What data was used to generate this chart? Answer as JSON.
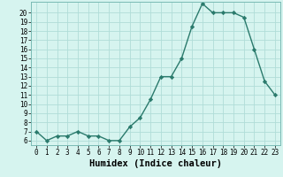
{
  "x": [
    0,
    1,
    2,
    3,
    4,
    5,
    6,
    7,
    8,
    9,
    10,
    11,
    12,
    13,
    14,
    15,
    16,
    17,
    18,
    19,
    20,
    21,
    22,
    23
  ],
  "y": [
    7,
    6,
    6.5,
    6.5,
    7,
    6.5,
    6.5,
    6,
    6,
    7.5,
    8.5,
    10.5,
    13,
    13,
    15,
    18.5,
    21,
    20,
    20,
    20,
    19.5,
    16,
    12.5,
    11
  ],
  "line_color": "#2a7a6c",
  "marker": "D",
  "marker_size": 2.2,
  "line_width": 1.0,
  "xlabel": "Humidex (Indice chaleur)",
  "xlim": [
    -0.5,
    23.5
  ],
  "ylim": [
    5.5,
    21.2
  ],
  "yticks": [
    6,
    7,
    8,
    9,
    10,
    11,
    12,
    13,
    14,
    15,
    16,
    17,
    18,
    19,
    20
  ],
  "xtick_labels": [
    "0",
    "1",
    "2",
    "3",
    "4",
    "5",
    "6",
    "7",
    "8",
    "9",
    "10",
    "11",
    "12",
    "13",
    "14",
    "15",
    "16",
    "17",
    "18",
    "19",
    "20",
    "21",
    "22",
    "23"
  ],
  "bg_color": "#d6f4ef",
  "grid_color": "#b0ddd8",
  "tick_fontsize": 5.5,
  "xlabel_fontsize": 7.5
}
